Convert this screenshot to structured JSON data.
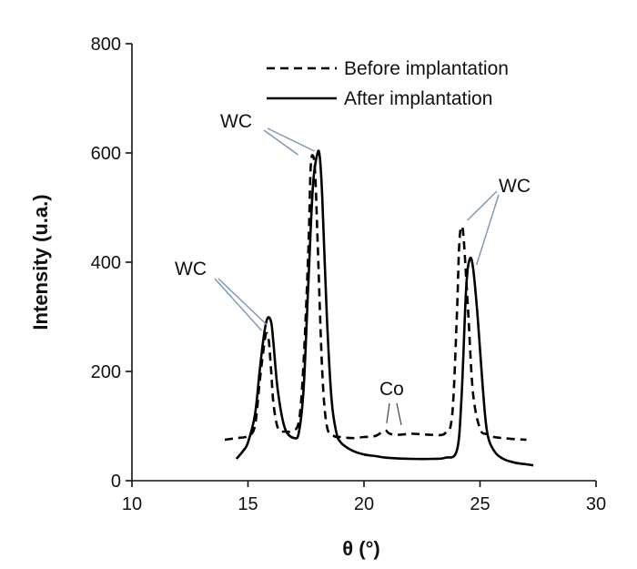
{
  "chart_data": {
    "type": "line",
    "xlabel": "θ (°)",
    "ylabel": "Intensity (u.a.)",
    "xlim": [
      10,
      30
    ],
    "ylim": [
      0,
      800
    ],
    "xticks": [
      10,
      15,
      20,
      25,
      30
    ],
    "yticks": [
      0,
      200,
      400,
      600,
      800
    ],
    "grid": false,
    "legend_position": "top-right",
    "series": [
      {
        "name": "Before implantation",
        "style": "dashed",
        "color": "#000000",
        "x": [
          14.0,
          14.5,
          15.0,
          15.3,
          15.5,
          15.7,
          15.8,
          15.9,
          16.0,
          16.1,
          16.3,
          16.6,
          16.9,
          17.2,
          17.4,
          17.6,
          17.7,
          17.8,
          17.9,
          18.0,
          18.2,
          18.4,
          18.7,
          19.0,
          19.5,
          20.0,
          20.5,
          20.9,
          21.1,
          21.5,
          22.0,
          22.5,
          23.0,
          23.5,
          23.8,
          24.0,
          24.1,
          24.2,
          24.3,
          24.5,
          24.7,
          25.0,
          25.3,
          25.6,
          26.0,
          26.5,
          27.0
        ],
        "y": [
          75,
          78,
          82,
          100,
          180,
          250,
          270,
          255,
          200,
          140,
          95,
          90,
          92,
          110,
          220,
          420,
          570,
          595,
          560,
          440,
          200,
          100,
          82,
          80,
          78,
          80,
          82,
          92,
          86,
          84,
          86,
          85,
          84,
          87,
          120,
          300,
          430,
          465,
          440,
          300,
          160,
          95,
          85,
          80,
          78,
          76,
          75
        ]
      },
      {
        "name": "After implantation",
        "style": "solid",
        "color": "#000000",
        "x": [
          14.5,
          14.8,
          15.0,
          15.3,
          15.5,
          15.7,
          15.85,
          16.0,
          16.1,
          16.3,
          16.6,
          17.0,
          17.2,
          17.4,
          17.6,
          17.8,
          18.0,
          18.1,
          18.2,
          18.4,
          18.6,
          18.8,
          19.0,
          19.5,
          20.0,
          20.5,
          21.0,
          22.0,
          23.0,
          23.5,
          24.0,
          24.2,
          24.4,
          24.55,
          24.7,
          24.9,
          25.1,
          25.3,
          25.6,
          26.0,
          26.5,
          27.0,
          27.3
        ],
        "y": [
          40,
          55,
          70,
          120,
          200,
          270,
          298,
          290,
          250,
          160,
          95,
          78,
          90,
          170,
          360,
          540,
          600,
          590,
          520,
          300,
          150,
          90,
          70,
          55,
          48,
          45,
          42,
          40,
          40,
          42,
          55,
          150,
          350,
          405,
          390,
          300,
          180,
          90,
          55,
          40,
          33,
          30,
          28
        ]
      }
    ],
    "annotations": [
      {
        "label": "WC",
        "tip_x": 15.9,
        "tip_y": 295
      },
      {
        "label": "WC",
        "tip_x": 18.1,
        "tip_y": 600
      },
      {
        "label": "Co",
        "tip_x": 20.9,
        "tip_y": 92
      },
      {
        "label": "WC",
        "tip_x": 24.3,
        "tip_y": 470
      }
    ]
  }
}
